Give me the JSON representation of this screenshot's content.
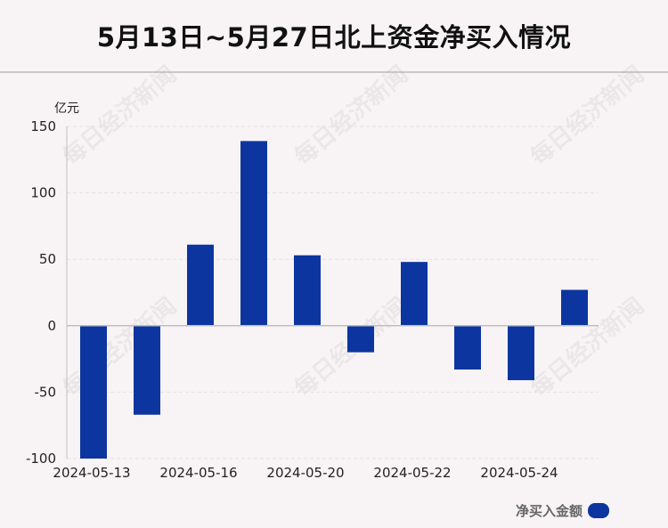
{
  "title": "5月13日~5月27日北上资金净买入情况",
  "watermark": "每日经济新闻",
  "colors": {
    "bar": "#0c35a0",
    "axis": "#bfbfbf",
    "grid": "#e4e0e3",
    "text": "#222222"
  },
  "chart_data": {
    "type": "bar",
    "ylabel": "亿元",
    "ylim": [
      -100,
      150
    ],
    "yticks": [
      150,
      100,
      50,
      0,
      -50,
      -100
    ],
    "x_tick_labels": [
      "2024-05-13",
      "2024-05-16",
      "2024-05-20",
      "2024-05-22",
      "2024-05-24"
    ],
    "x_tick_label_bar_index": [
      0,
      2,
      4,
      6,
      8
    ],
    "legend": "净买入金额",
    "grid": true,
    "series": [
      {
        "name": "净买入金额",
        "values": [
          -100,
          -67,
          61,
          139,
          53,
          -20,
          48,
          -33,
          -41,
          27
        ]
      }
    ]
  }
}
